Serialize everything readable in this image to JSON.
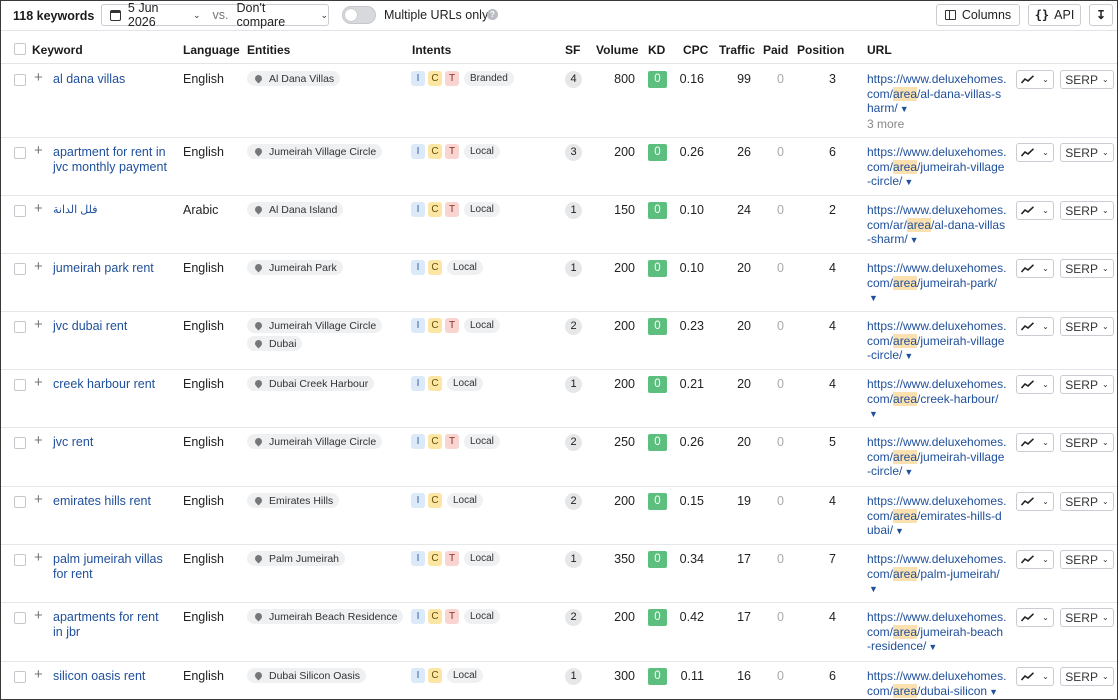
{
  "toolbar": {
    "keyword_count": "118 keywords",
    "date": "5 Jun 2026",
    "vs": "vs.",
    "compare": "Don't compare",
    "toggle_label": "Multiple URLs only",
    "columns": "Columns",
    "api": "API",
    "api_icon": "{}"
  },
  "columns": {
    "keyword": "Keyword",
    "language": "Language",
    "entities": "Entities",
    "intents": "Intents",
    "sf": "SF",
    "volume": "Volume",
    "kd": "KD",
    "cpc": "CPC",
    "traffic": "Traffic",
    "paid": "Paid",
    "position": "Position",
    "url": "URL"
  },
  "row_buttons": {
    "serp": "SERP"
  },
  "colors": {
    "kd_green": "#5cbf7d",
    "link": "#20509b",
    "highlight": "#fbe0b0"
  },
  "rows": [
    {
      "keyword": "al dana villas",
      "language": "English",
      "entities": [
        "Al Dana Villas"
      ],
      "intents": [
        "I",
        "C",
        "T"
      ],
      "intent_label": "Branded",
      "sf": "4",
      "volume": "800",
      "kd": "0",
      "cpc": "0.16",
      "traffic": "99",
      "paid": "0",
      "position": "3",
      "url_pre": "https://www.deluxehomes.com/",
      "url_hl": "area",
      "url_post": "/al-dana-villas-sharm/",
      "more": "3 more"
    },
    {
      "keyword": "apartment for rent in jvc monthly payment",
      "language": "English",
      "entities": [
        "Jumeirah Village Circle"
      ],
      "intents": [
        "I",
        "C",
        "T"
      ],
      "intent_label": "Local",
      "sf": "3",
      "volume": "200",
      "kd": "0",
      "cpc": "0.26",
      "traffic": "26",
      "paid": "0",
      "position": "6",
      "url_pre": "https://www.deluxehomes.com/",
      "url_hl": "area",
      "url_post": "/jumeirah-village-circle/",
      "more": ""
    },
    {
      "keyword": "فلل الدانة",
      "language": "Arabic",
      "entities": [
        "Al Dana Island"
      ],
      "intents": [
        "I",
        "C",
        "T"
      ],
      "intent_label": "Local",
      "sf": "1",
      "volume": "150",
      "kd": "0",
      "cpc": "0.10",
      "traffic": "24",
      "paid": "0",
      "position": "2",
      "url_pre": "https://www.deluxehomes.com/ar/",
      "url_hl": "area",
      "url_post": "/al-dana-villas-sharm/",
      "more": ""
    },
    {
      "keyword": "jumeirah park rent",
      "language": "English",
      "entities": [
        "Jumeirah Park"
      ],
      "intents": [
        "I",
        "C"
      ],
      "intent_label": "Local",
      "sf": "1",
      "volume": "200",
      "kd": "0",
      "cpc": "0.10",
      "traffic": "20",
      "paid": "0",
      "position": "4",
      "url_pre": "https://www.deluxehomes.com/",
      "url_hl": "area",
      "url_post": "/jumeirah-park/",
      "more": ""
    },
    {
      "keyword": "jvc dubai rent",
      "language": "English",
      "entities": [
        "Jumeirah Village Circle",
        "Dubai"
      ],
      "intents": [
        "I",
        "C",
        "T"
      ],
      "intent_label": "Local",
      "sf": "2",
      "volume": "200",
      "kd": "0",
      "cpc": "0.23",
      "traffic": "20",
      "paid": "0",
      "position": "4",
      "url_pre": "https://www.deluxehomes.com/",
      "url_hl": "area",
      "url_post": "/jumeirah-village-circle/",
      "more": ""
    },
    {
      "keyword": "creek harbour rent",
      "language": "English",
      "entities": [
        "Dubai Creek Harbour"
      ],
      "intents": [
        "I",
        "C"
      ],
      "intent_label": "Local",
      "sf": "1",
      "volume": "200",
      "kd": "0",
      "cpc": "0.21",
      "traffic": "20",
      "paid": "0",
      "position": "4",
      "url_pre": "https://www.deluxehomes.com/",
      "url_hl": "area",
      "url_post": "/creek-harbour/",
      "more": ""
    },
    {
      "keyword": "jvc rent",
      "language": "English",
      "entities": [
        "Jumeirah Village Circle"
      ],
      "intents": [
        "I",
        "C",
        "T"
      ],
      "intent_label": "Local",
      "sf": "2",
      "volume": "250",
      "kd": "0",
      "cpc": "0.26",
      "traffic": "20",
      "paid": "0",
      "position": "5",
      "url_pre": "https://www.deluxehomes.com/",
      "url_hl": "area",
      "url_post": "/jumeirah-village-circle/",
      "more": ""
    },
    {
      "keyword": "emirates hills rent",
      "language": "English",
      "entities": [
        "Emirates Hills"
      ],
      "intents": [
        "I",
        "C"
      ],
      "intent_label": "Local",
      "sf": "2",
      "volume": "200",
      "kd": "0",
      "cpc": "0.15",
      "traffic": "19",
      "paid": "0",
      "position": "4",
      "url_pre": "https://www.deluxehomes.com/",
      "url_hl": "area",
      "url_post": "/emirates-hills-dubai/",
      "more": ""
    },
    {
      "keyword": "palm jumeirah villas for rent",
      "language": "English",
      "entities": [
        "Palm Jumeirah"
      ],
      "intents": [
        "I",
        "C",
        "T"
      ],
      "intent_label": "Local",
      "sf": "1",
      "volume": "350",
      "kd": "0",
      "cpc": "0.34",
      "traffic": "17",
      "paid": "0",
      "position": "7",
      "url_pre": "https://www.deluxehomes.com/",
      "url_hl": "area",
      "url_post": "/palm-jumeirah/",
      "more": ""
    },
    {
      "keyword": "apartments for rent in jbr",
      "language": "English",
      "entities": [
        "Jumeirah Beach Residence"
      ],
      "intents": [
        "I",
        "C",
        "T"
      ],
      "intent_label": "Local",
      "sf": "2",
      "volume": "200",
      "kd": "0",
      "cpc": "0.42",
      "traffic": "17",
      "paid": "0",
      "position": "4",
      "url_pre": "https://www.deluxehomes.com/",
      "url_hl": "area",
      "url_post": "/jumeirah-beach-residence/",
      "more": ""
    },
    {
      "keyword": "silicon oasis rent",
      "language": "English",
      "entities": [
        "Dubai Silicon Oasis"
      ],
      "intents": [
        "I",
        "C"
      ],
      "intent_label": "Local",
      "sf": "1",
      "volume": "300",
      "kd": "0",
      "cpc": "0.11",
      "traffic": "16",
      "paid": "0",
      "position": "6",
      "url_pre": "https://www.deluxehomes.com/",
      "url_hl": "area",
      "url_post": "/dubai-silicon",
      "more": ""
    }
  ]
}
